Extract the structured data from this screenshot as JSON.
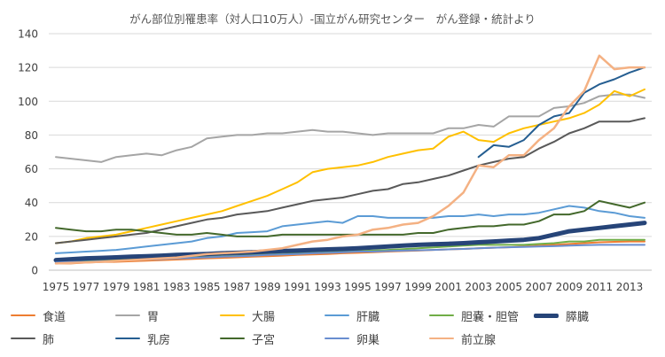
{
  "chart_data": {
    "type": "line",
    "title": "がん部位別罹患率（対人口10万人）-国立がん研究センター　がん登録・統計より",
    "xlabel": "",
    "ylabel": "",
    "ylim": [
      0,
      140
    ],
    "yticks": [
      "0",
      "20",
      "40",
      "60",
      "80",
      "100",
      "120",
      "140"
    ],
    "x": [
      1975,
      1976,
      1977,
      1978,
      1979,
      1980,
      1981,
      1982,
      1983,
      1984,
      1985,
      1986,
      1987,
      1988,
      1989,
      1990,
      1991,
      1992,
      1993,
      1994,
      1995,
      1996,
      1997,
      1998,
      1999,
      2000,
      2001,
      2002,
      2003,
      2004,
      2005,
      2006,
      2007,
      2008,
      2009,
      2010,
      2011,
      2012,
      2013,
      2014
    ],
    "xticks": [
      "1975",
      "1977",
      "1979",
      "1981",
      "1983",
      "1985",
      "1987",
      "1989",
      "1991",
      "1993",
      "1995",
      "1997",
      "1999",
      "2001",
      "2003",
      "2005",
      "2007",
      "2009",
      "2011",
      "2013"
    ],
    "grid": true,
    "legend_position": "bottom",
    "series": [
      {
        "name": "食道",
        "color": "#ED7D31",
        "width": 2,
        "values": [
          4,
          4,
          4.5,
          4.8,
          5,
          5.3,
          5.6,
          6,
          6.3,
          6.6,
          7,
          7.3,
          7.6,
          8,
          8.3,
          8.6,
          9,
          9.3,
          9.6,
          10,
          10.3,
          10.6,
          11,
          11.3,
          11.6,
          12,
          12.3,
          12.6,
          13,
          13.3,
          13.6,
          14,
          14.5,
          15,
          15.5,
          16,
          16.5,
          16.8,
          17,
          17
        ]
      },
      {
        "name": "胃",
        "color": "#A5A5A5",
        "width": 2,
        "values": [
          67,
          66,
          65,
          64,
          67,
          68,
          69,
          68,
          71,
          73,
          78,
          79,
          80,
          80,
          81,
          81,
          82,
          83,
          82,
          82,
          81,
          80,
          81,
          81,
          81,
          81,
          84,
          84,
          86,
          85,
          91,
          91,
          91,
          96,
          97,
          99,
          103,
          104,
          104,
          102
        ]
      },
      {
        "name": "大腸",
        "color": "#FFC000",
        "width": 2,
        "values": [
          16,
          17,
          19,
          20,
          21,
          23,
          25,
          27,
          29,
          31,
          33,
          35,
          38,
          41,
          44,
          48,
          52,
          58,
          60,
          61,
          62,
          64,
          67,
          69,
          71,
          72,
          79,
          82,
          77,
          76,
          81,
          84,
          86,
          88,
          90,
          93,
          98,
          106,
          103,
          107
        ]
      },
      {
        "name": "肝臓",
        "color": "#5B9BD5",
        "width": 2,
        "values": [
          10,
          10.5,
          11,
          11.5,
          12,
          13,
          14,
          15,
          16,
          17,
          19,
          20,
          22,
          22.5,
          23,
          26,
          27,
          28,
          29,
          28,
          32,
          32,
          31,
          31,
          31,
          31,
          32,
          32,
          33,
          32,
          33,
          33,
          34,
          36,
          38,
          37,
          35,
          34,
          32,
          31
        ]
      },
      {
        "name": "胆嚢・胆管",
        "color": "#70AD47",
        "width": 2,
        "values": [
          5,
          5.2,
          5.5,
          5.8,
          6,
          6.3,
          6.6,
          7,
          7.3,
          7.6,
          8,
          8.3,
          8.6,
          9,
          9.3,
          9.6,
          10,
          10.3,
          10.6,
          11,
          11.3,
          11.6,
          12,
          12.5,
          13,
          13.5,
          14,
          14.5,
          15,
          15,
          15,
          15,
          15.5,
          16,
          17,
          17,
          18,
          18,
          18,
          18
        ]
      },
      {
        "name": "膵臓",
        "color": "#264478",
        "width": 5,
        "values": [
          6,
          6.5,
          7,
          7.3,
          7.6,
          8,
          8.3,
          8.6,
          9,
          9.3,
          9.6,
          10,
          10.3,
          10.6,
          11,
          11.3,
          11.6,
          12,
          12.3,
          12.6,
          13,
          13.5,
          14,
          14.5,
          15,
          15.3,
          15.6,
          16,
          16.5,
          17,
          17.5,
          18,
          19,
          21,
          23,
          24,
          25,
          26,
          27,
          28
        ]
      },
      {
        "name": "肺",
        "color": "#595959",
        "width": 2,
        "values": [
          16,
          17,
          18,
          19,
          20,
          21,
          22,
          24,
          26,
          28,
          30,
          31,
          33,
          34,
          35,
          37,
          39,
          41,
          42,
          43,
          45,
          47,
          48,
          51,
          52,
          54,
          56,
          59,
          62,
          64,
          66,
          67,
          72,
          76,
          81,
          84,
          88,
          88,
          88,
          90
        ]
      },
      {
        "name": "乳房",
        "color": "#255E91",
        "width": 2,
        "values": [
          null,
          null,
          null,
          null,
          null,
          null,
          null,
          null,
          null,
          null,
          null,
          null,
          null,
          null,
          null,
          null,
          null,
          null,
          null,
          null,
          null,
          null,
          null,
          null,
          null,
          null,
          null,
          null,
          67,
          74,
          73,
          77,
          86,
          91,
          93,
          105,
          110,
          113,
          117,
          120
        ]
      },
      {
        "name": "子宮",
        "color": "#43682B",
        "width": 2,
        "values": [
          25,
          24,
          23,
          23,
          24,
          24,
          23,
          22,
          21,
          21,
          22,
          21,
          20,
          20,
          20,
          21,
          21,
          21,
          21,
          21,
          21,
          21,
          21,
          21,
          22,
          22,
          24,
          25,
          26,
          26,
          27,
          27,
          29,
          33,
          33,
          35,
          41,
          39,
          37,
          40
        ]
      },
      {
        "name": "卵巣",
        "color": "#698ED0",
        "width": 2,
        "values": [
          4.5,
          4.8,
          5,
          5.3,
          5.5,
          6,
          6.3,
          6.6,
          7,
          7.3,
          7.6,
          8,
          8.3,
          8.6,
          9,
          9.3,
          9.6,
          10,
          10.3,
          10.6,
          11,
          11,
          11.3,
          11.6,
          11.8,
          12,
          12.3,
          12.6,
          13,
          13.3,
          13.6,
          13.8,
          14,
          14.2,
          14.5,
          14.8,
          15,
          15,
          15,
          15
        ]
      },
      {
        "name": "前立腺",
        "color": "#F4B183",
        "width": 2.5,
        "values": [
          4,
          4.3,
          4.6,
          5,
          5.5,
          6,
          6.5,
          7,
          7.5,
          8.5,
          9.5,
          10,
          10.5,
          11,
          12,
          13,
          15,
          17,
          18,
          20,
          21,
          24,
          25,
          27,
          28,
          32,
          38,
          46,
          62,
          61,
          68,
          68,
          77,
          84,
          97,
          106,
          127,
          119,
          120,
          120
        ]
      }
    ]
  }
}
